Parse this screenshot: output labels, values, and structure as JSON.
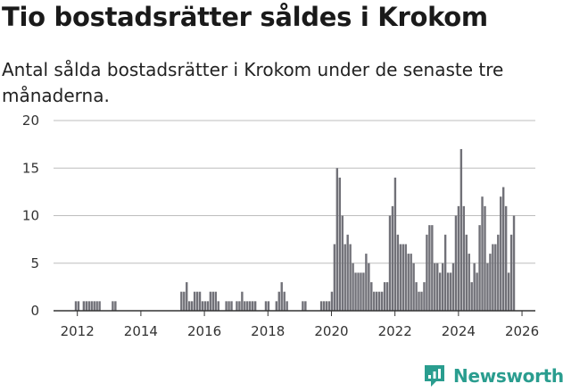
{
  "chart_data": {
    "type": "bar",
    "title": "Tio bostadsrätter såldes i Krokom",
    "subtitle": "Antal sålda bostadsrätter i Krokom under de senaste tre månaderna.",
    "xlabel": "",
    "ylabel": "",
    "ylim": [
      0,
      20
    ],
    "y_ticks": [
      "0",
      "5",
      "10",
      "15",
      "20"
    ],
    "x_ticks": [
      "2012",
      "2014",
      "2016",
      "2018",
      "2020",
      "2022",
      "2024",
      "2026"
    ],
    "x_range_years": [
      2011.25,
      2026.42
    ],
    "start": "2011-07",
    "values": [
      0,
      0,
      0,
      0,
      0,
      0,
      0,
      1,
      1,
      0,
      1,
      1,
      1,
      1,
      1,
      1,
      1,
      0,
      0,
      0,
      0,
      1,
      1,
      0,
      0,
      0,
      0,
      0,
      0,
      0,
      0,
      0,
      0,
      0,
      0,
      0,
      0,
      0,
      0,
      0,
      0,
      0,
      0,
      0,
      0,
      0,
      0,
      2,
      2,
      3,
      1,
      1,
      2,
      2,
      2,
      1,
      1,
      1,
      2,
      2,
      2,
      1,
      0,
      0,
      1,
      1,
      1,
      0,
      1,
      1,
      2,
      1,
      1,
      1,
      1,
      1,
      0,
      0,
      0,
      1,
      1,
      0,
      0,
      1,
      2,
      3,
      2,
      1,
      0,
      0,
      0,
      0,
      0,
      1,
      1,
      0,
      0,
      0,
      0,
      0,
      1,
      1,
      1,
      1,
      2,
      7,
      15,
      14,
      10,
      7,
      8,
      7,
      5,
      4,
      4,
      4,
      4,
      6,
      5,
      3,
      2,
      2,
      2,
      2,
      3,
      3,
      10,
      11,
      14,
      8,
      7,
      7,
      7,
      6,
      6,
      5,
      3,
      2,
      2,
      3,
      8,
      9,
      9,
      5,
      5,
      4,
      5,
      8,
      4,
      4,
      5,
      10,
      11,
      17,
      11,
      8,
      6,
      3,
      5,
      4,
      9,
      12,
      11,
      5,
      6,
      7,
      7,
      8,
      12,
      13,
      11,
      4,
      8,
      10
    ],
    "highlight_index": 177,
    "highlight_label": "10",
    "colors": {
      "bar": "#717178",
      "highlight": "#2a9d8f",
      "grid": "#bdbdbd",
      "axis": "#333333"
    }
  },
  "brand": {
    "name": "Newsworthy",
    "icon": "newsworthy-logo-icon"
  }
}
